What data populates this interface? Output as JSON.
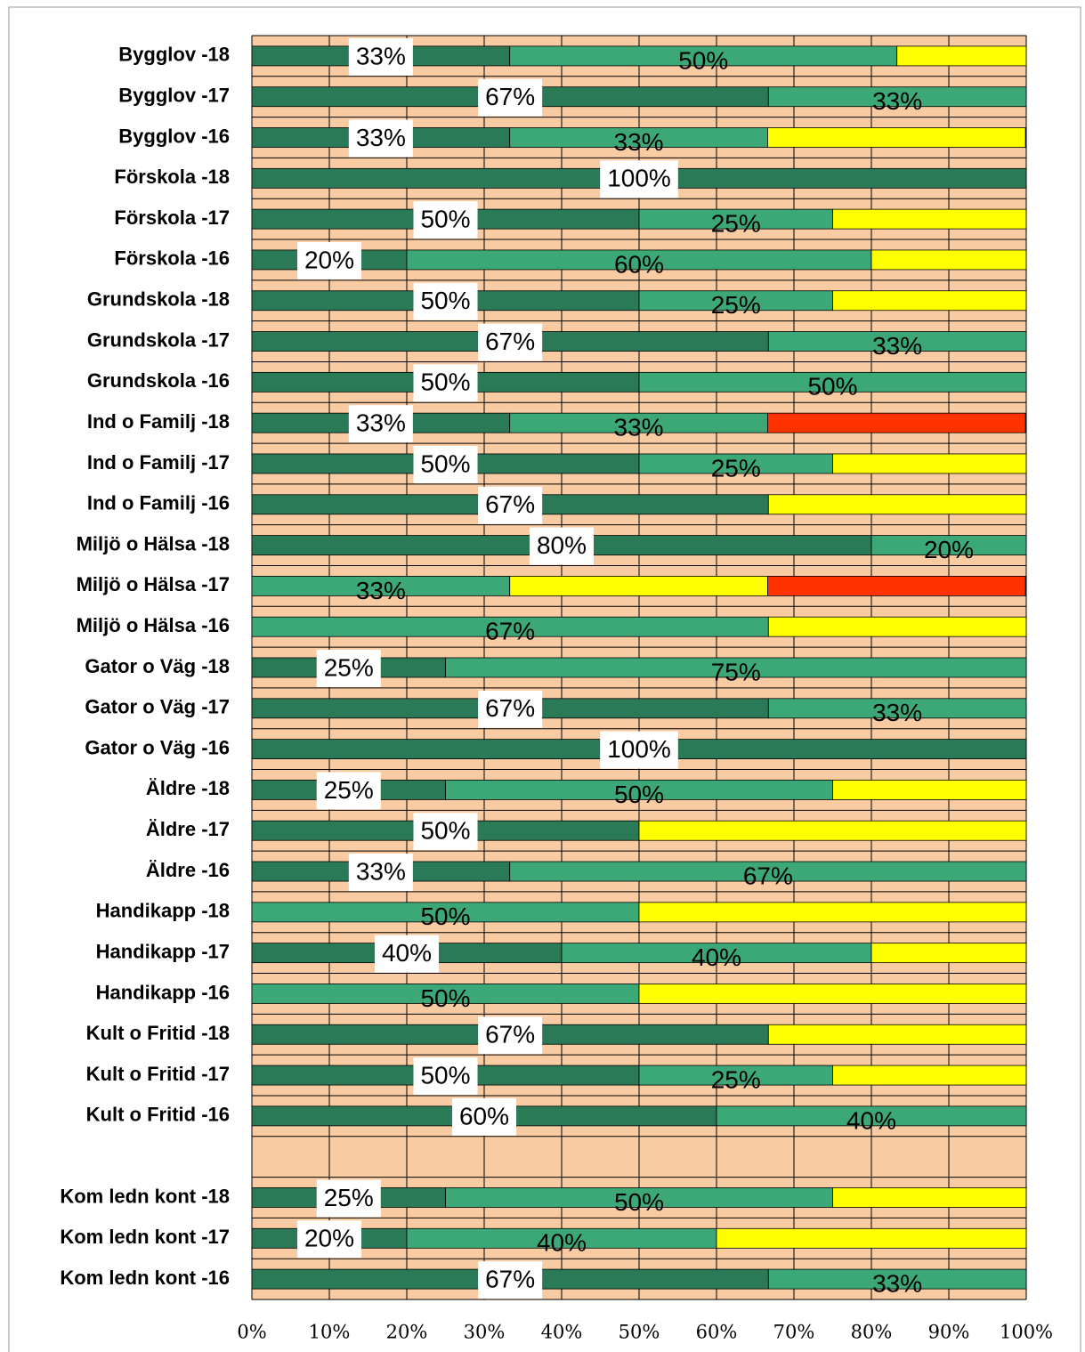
{
  "chart_data": {
    "type": "stacked-barh",
    "categories": [
      "Bygglov -18",
      "Bygglov -17",
      "Bygglov -16",
      "Förskola -18",
      "Förskola -17",
      "Förskola -16",
      "Grundskola -18",
      "Grundskola -17",
      "Grundskola -16",
      "Ind o Familj -18",
      "Ind o Familj -17",
      "Ind o Familj -16",
      "Miljö o Hälsa -18",
      "Miljö o Hälsa -17",
      "Miljö o Hälsa -16",
      "Gator o Väg -18",
      "Gator o Väg -17",
      "Gator o Väg -16",
      "Äldre -18",
      "Äldre -17",
      "Äldre -16",
      "Handikapp -18",
      "Handikapp -17",
      "Handikapp -16",
      "Kult o Fritid -18",
      "Kult o Fritid -17",
      "Kult o Fritid -16",
      null,
      "Kom ledn kont -18",
      "Kom ledn kont -17",
      "Kom ledn kont -16"
    ],
    "series": [
      {
        "color": "#2b7a57",
        "label_box": true,
        "values": [
          33.3,
          66.7,
          33.3,
          100,
          50,
          20,
          50,
          66.7,
          50,
          33.3,
          50,
          66.7,
          80,
          null,
          null,
          25,
          66.7,
          100,
          25,
          50,
          33.3,
          null,
          40,
          null,
          66.7,
          50,
          60,
          null,
          25,
          20,
          66.7
        ],
        "value_labels": [
          "33%",
          "67%",
          "33%",
          "100%",
          "50%",
          "20%",
          "50%",
          "67%",
          "50%",
          "33%",
          "50%",
          "67%",
          "80%",
          null,
          null,
          "25%",
          "67%",
          "100%",
          "25%",
          "50%",
          "33%",
          null,
          "40%",
          null,
          "67%",
          "50%",
          "60%",
          null,
          "25%",
          "20%",
          "67%"
        ]
      },
      {
        "color": "#3da877",
        "label_box": false,
        "values": [
          50,
          33.3,
          33.3,
          null,
          25,
          60,
          25,
          33.3,
          50,
          33.3,
          25,
          null,
          20,
          33.3,
          66.7,
          75,
          33.3,
          null,
          50,
          null,
          66.7,
          50,
          40,
          50,
          null,
          25,
          40,
          null,
          50,
          40,
          33.3
        ],
        "value_labels": [
          "50%",
          "33%",
          "33%",
          null,
          "25%",
          "60%",
          "25%",
          "33%",
          "50%",
          "33%",
          "25%",
          null,
          "20%",
          "33%",
          "67%",
          "75%",
          "33%",
          null,
          "50%",
          null,
          "67%",
          "50%",
          "40%",
          "50%",
          null,
          "25%",
          "40%",
          null,
          "50%",
          "40%",
          "33%"
        ]
      },
      {
        "color": "#ffff00",
        "values": [
          16.7,
          null,
          33.3,
          null,
          25,
          20,
          25,
          null,
          null,
          null,
          25,
          33.3,
          null,
          33.3,
          33.3,
          null,
          null,
          null,
          25,
          50,
          null,
          50,
          20,
          50,
          33.3,
          25,
          null,
          null,
          25,
          40,
          null
        ]
      },
      {
        "color": "#ff3300",
        "values": [
          null,
          null,
          null,
          null,
          null,
          null,
          null,
          null,
          null,
          33.3,
          null,
          null,
          null,
          33.3,
          null,
          null,
          null,
          null,
          null,
          null,
          null,
          null,
          null,
          null,
          null,
          null,
          null,
          null,
          null,
          null,
          null
        ]
      }
    ],
    "xlim": [
      0,
      100
    ],
    "xticks": [
      {
        "value": 0,
        "label": "0%"
      },
      {
        "value": 10,
        "label": "10%"
      },
      {
        "value": 20,
        "label": "20%"
      },
      {
        "value": 30,
        "label": "30%"
      },
      {
        "value": 40,
        "label": "40%"
      },
      {
        "value": 50,
        "label": "50%"
      },
      {
        "value": 60,
        "label": "60%"
      },
      {
        "value": 70,
        "label": "70%"
      },
      {
        "value": 80,
        "label": "80%"
      },
      {
        "value": 90,
        "label": "90%"
      },
      {
        "value": 100,
        "label": "100%"
      }
    ],
    "grid": true,
    "background": "#f9cba2"
  }
}
